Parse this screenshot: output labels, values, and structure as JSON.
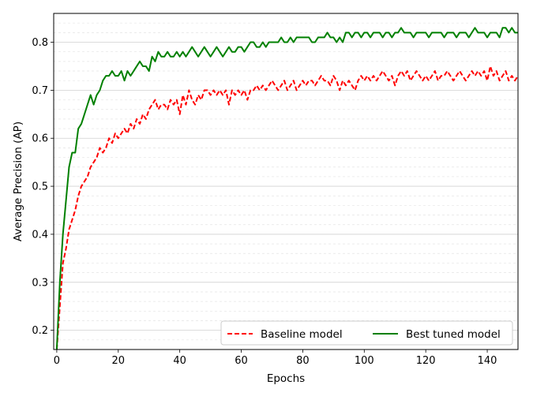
{
  "chart_data": {
    "type": "line",
    "xlabel": "Epochs",
    "ylabel": "Average Precision (AP)",
    "xlim": [
      -1,
      150
    ],
    "ylim": [
      0.16,
      0.86
    ],
    "xticks": [
      0,
      20,
      40,
      60,
      80,
      100,
      120,
      140
    ],
    "yticks": [
      0.2,
      0.3,
      0.4,
      0.5,
      0.6,
      0.7,
      0.8
    ],
    "grid": true,
    "legend_position": "lower-right",
    "series": [
      {
        "name": "Baseline model",
        "color": "#ff0000",
        "style": "dashed",
        "x": [
          0,
          1,
          2,
          3,
          4,
          5,
          6,
          7,
          8,
          9,
          10,
          11,
          12,
          13,
          14,
          15,
          16,
          17,
          18,
          19,
          20,
          21,
          22,
          23,
          24,
          25,
          26,
          27,
          28,
          29,
          30,
          31,
          32,
          33,
          34,
          35,
          36,
          37,
          38,
          39,
          40,
          41,
          42,
          43,
          44,
          45,
          46,
          47,
          48,
          49,
          50,
          51,
          52,
          53,
          54,
          55,
          56,
          57,
          58,
          59,
          60,
          61,
          62,
          63,
          64,
          65,
          66,
          67,
          68,
          69,
          70,
          71,
          72,
          73,
          74,
          75,
          76,
          77,
          78,
          79,
          80,
          81,
          82,
          83,
          84,
          85,
          86,
          87,
          88,
          89,
          90,
          91,
          92,
          93,
          94,
          95,
          96,
          97,
          98,
          99,
          100,
          101,
          102,
          103,
          104,
          105,
          106,
          107,
          108,
          109,
          110,
          111,
          112,
          113,
          114,
          115,
          116,
          117,
          118,
          119,
          120,
          121,
          122,
          123,
          124,
          125,
          126,
          127,
          128,
          129,
          130,
          131,
          132,
          133,
          134,
          135,
          136,
          137,
          138,
          139,
          140,
          141,
          142,
          143,
          144,
          145,
          146,
          147,
          148,
          149,
          150
        ],
        "values": [
          0.16,
          0.25,
          0.34,
          0.37,
          0.41,
          0.43,
          0.45,
          0.48,
          0.5,
          0.51,
          0.52,
          0.54,
          0.55,
          0.56,
          0.58,
          0.57,
          0.58,
          0.6,
          0.59,
          0.61,
          0.6,
          0.61,
          0.62,
          0.61,
          0.63,
          0.62,
          0.64,
          0.63,
          0.65,
          0.64,
          0.66,
          0.67,
          0.68,
          0.66,
          0.67,
          0.67,
          0.66,
          0.68,
          0.67,
          0.68,
          0.65,
          0.69,
          0.67,
          0.7,
          0.68,
          0.67,
          0.69,
          0.68,
          0.7,
          0.7,
          0.69,
          0.7,
          0.69,
          0.7,
          0.69,
          0.7,
          0.67,
          0.7,
          0.69,
          0.7,
          0.69,
          0.7,
          0.68,
          0.7,
          0.7,
          0.71,
          0.7,
          0.71,
          0.7,
          0.71,
          0.72,
          0.71,
          0.7,
          0.71,
          0.72,
          0.7,
          0.71,
          0.72,
          0.7,
          0.71,
          0.72,
          0.71,
          0.72,
          0.72,
          0.71,
          0.72,
          0.73,
          0.72,
          0.72,
          0.71,
          0.73,
          0.72,
          0.7,
          0.72,
          0.71,
          0.72,
          0.71,
          0.7,
          0.72,
          0.73,
          0.72,
          0.73,
          0.72,
          0.73,
          0.72,
          0.73,
          0.74,
          0.73,
          0.72,
          0.73,
          0.71,
          0.73,
          0.74,
          0.73,
          0.74,
          0.72,
          0.73,
          0.74,
          0.73,
          0.72,
          0.73,
          0.72,
          0.73,
          0.74,
          0.72,
          0.73,
          0.73,
          0.74,
          0.73,
          0.72,
          0.73,
          0.74,
          0.73,
          0.72,
          0.73,
          0.74,
          0.73,
          0.74,
          0.73,
          0.74,
          0.72,
          0.75,
          0.73,
          0.74,
          0.72,
          0.73,
          0.74,
          0.72,
          0.73,
          0.72,
          0.73
        ]
      },
      {
        "name": "Best tuned model",
        "color": "#008000",
        "style": "solid",
        "x": [
          0,
          1,
          2,
          3,
          4,
          5,
          6,
          7,
          8,
          9,
          10,
          11,
          12,
          13,
          14,
          15,
          16,
          17,
          18,
          19,
          20,
          21,
          22,
          23,
          24,
          25,
          26,
          27,
          28,
          29,
          30,
          31,
          32,
          33,
          34,
          35,
          36,
          37,
          38,
          39,
          40,
          41,
          42,
          43,
          44,
          45,
          46,
          47,
          48,
          49,
          50,
          51,
          52,
          53,
          54,
          55,
          56,
          57,
          58,
          59,
          60,
          61,
          62,
          63,
          64,
          65,
          66,
          67,
          68,
          69,
          70,
          71,
          72,
          73,
          74,
          75,
          76,
          77,
          78,
          79,
          80,
          81,
          82,
          83,
          84,
          85,
          86,
          87,
          88,
          89,
          90,
          91,
          92,
          93,
          94,
          95,
          96,
          97,
          98,
          99,
          100,
          101,
          102,
          103,
          104,
          105,
          106,
          107,
          108,
          109,
          110,
          111,
          112,
          113,
          114,
          115,
          116,
          117,
          118,
          119,
          120,
          121,
          122,
          123,
          124,
          125,
          126,
          127,
          128,
          129,
          130,
          131,
          132,
          133,
          134,
          135,
          136,
          137,
          138,
          139,
          140,
          141,
          142,
          143,
          144,
          145,
          146,
          147,
          148,
          149,
          150
        ],
        "values": [
          0.16,
          0.3,
          0.4,
          0.47,
          0.54,
          0.57,
          0.57,
          0.62,
          0.63,
          0.65,
          0.67,
          0.69,
          0.67,
          0.69,
          0.7,
          0.72,
          0.73,
          0.73,
          0.74,
          0.73,
          0.73,
          0.74,
          0.72,
          0.74,
          0.73,
          0.74,
          0.75,
          0.76,
          0.75,
          0.75,
          0.74,
          0.77,
          0.76,
          0.78,
          0.77,
          0.77,
          0.78,
          0.77,
          0.77,
          0.78,
          0.77,
          0.78,
          0.77,
          0.78,
          0.79,
          0.78,
          0.77,
          0.78,
          0.79,
          0.78,
          0.77,
          0.78,
          0.79,
          0.78,
          0.77,
          0.78,
          0.79,
          0.78,
          0.78,
          0.79,
          0.79,
          0.78,
          0.79,
          0.8,
          0.8,
          0.79,
          0.79,
          0.8,
          0.79,
          0.8,
          0.8,
          0.8,
          0.8,
          0.81,
          0.8,
          0.8,
          0.81,
          0.8,
          0.81,
          0.81,
          0.81,
          0.81,
          0.81,
          0.8,
          0.8,
          0.81,
          0.81,
          0.81,
          0.82,
          0.81,
          0.81,
          0.8,
          0.81,
          0.8,
          0.82,
          0.82,
          0.81,
          0.82,
          0.82,
          0.81,
          0.82,
          0.82,
          0.81,
          0.82,
          0.82,
          0.82,
          0.81,
          0.82,
          0.82,
          0.81,
          0.82,
          0.82,
          0.83,
          0.82,
          0.82,
          0.82,
          0.81,
          0.82,
          0.82,
          0.82,
          0.82,
          0.81,
          0.82,
          0.82,
          0.82,
          0.82,
          0.81,
          0.82,
          0.82,
          0.82,
          0.81,
          0.82,
          0.82,
          0.82,
          0.81,
          0.82,
          0.83,
          0.82,
          0.82,
          0.82,
          0.81,
          0.82,
          0.82,
          0.82,
          0.81,
          0.83,
          0.83,
          0.82,
          0.83,
          0.82,
          0.82
        ]
      }
    ]
  }
}
